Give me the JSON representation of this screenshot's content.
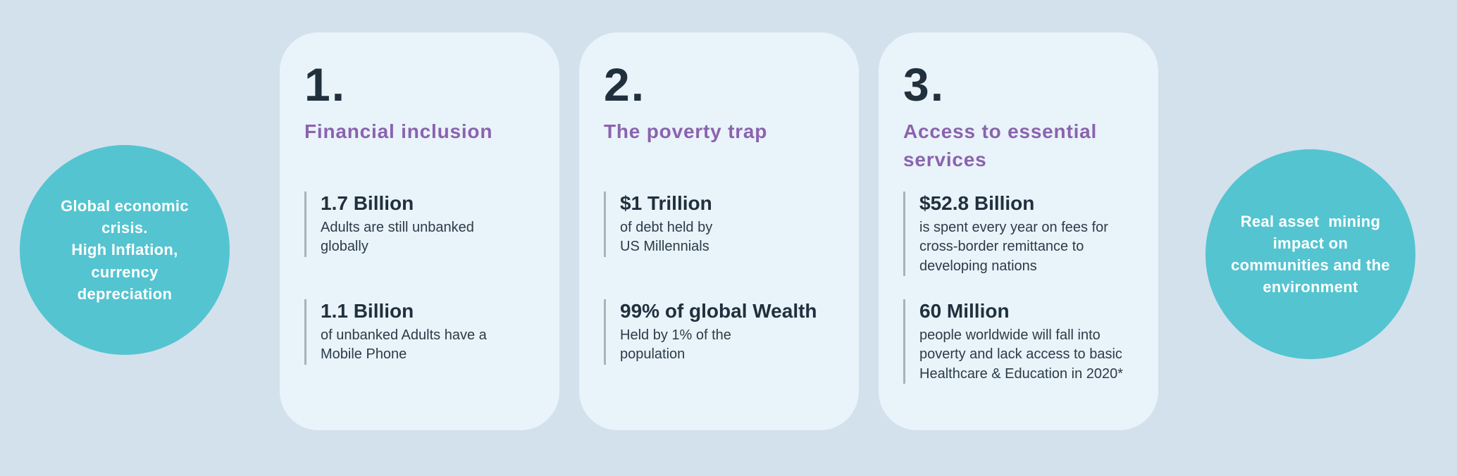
{
  "colors": {
    "bg": "#d3e1ed",
    "card_bg": "#e9f3fa",
    "teal": "#54c4d0",
    "purple": "#8a63ae",
    "dark": "#20303d",
    "body_text": "#2b3c48",
    "bar": "#a9b2ba",
    "white": "#ffffff"
  },
  "left_circle": {
    "text": "Global economic\ncrisis.\nHigh Inflation,\ncurrency\ndepreciation"
  },
  "right_circle": {
    "text": "Real asset  mining\nimpact on\ncommunities and the\nenvironment"
  },
  "cards": [
    {
      "number": "1.",
      "title": "Financial inclusion",
      "stats": [
        {
          "value": "1.7 Billion",
          "description": "Adults are still unbanked\nglobally"
        },
        {
          "value": "1.1 Billion",
          "description": "of unbanked Adults have a\nMobile Phone"
        }
      ]
    },
    {
      "number": "2.",
      "title": "The poverty trap",
      "stats": [
        {
          "value": "$1 Trillion",
          "description": "of debt held by\nUS Millennials"
        },
        {
          "value": "99% of global Wealth",
          "description": "Held by 1% of the\npopulation"
        }
      ]
    },
    {
      "number": "3.",
      "title": "Access to essential\nservices",
      "stats": [
        {
          "value": "$52.8 Billion",
          "description": "is spent every year on fees for\ncross-border remittance to\ndeveloping nations"
        },
        {
          "value": "60 Million",
          "description": "people worldwide will fall into\npoverty and lack access to basic\nHealthcare & Education in 2020*"
        }
      ]
    }
  ]
}
